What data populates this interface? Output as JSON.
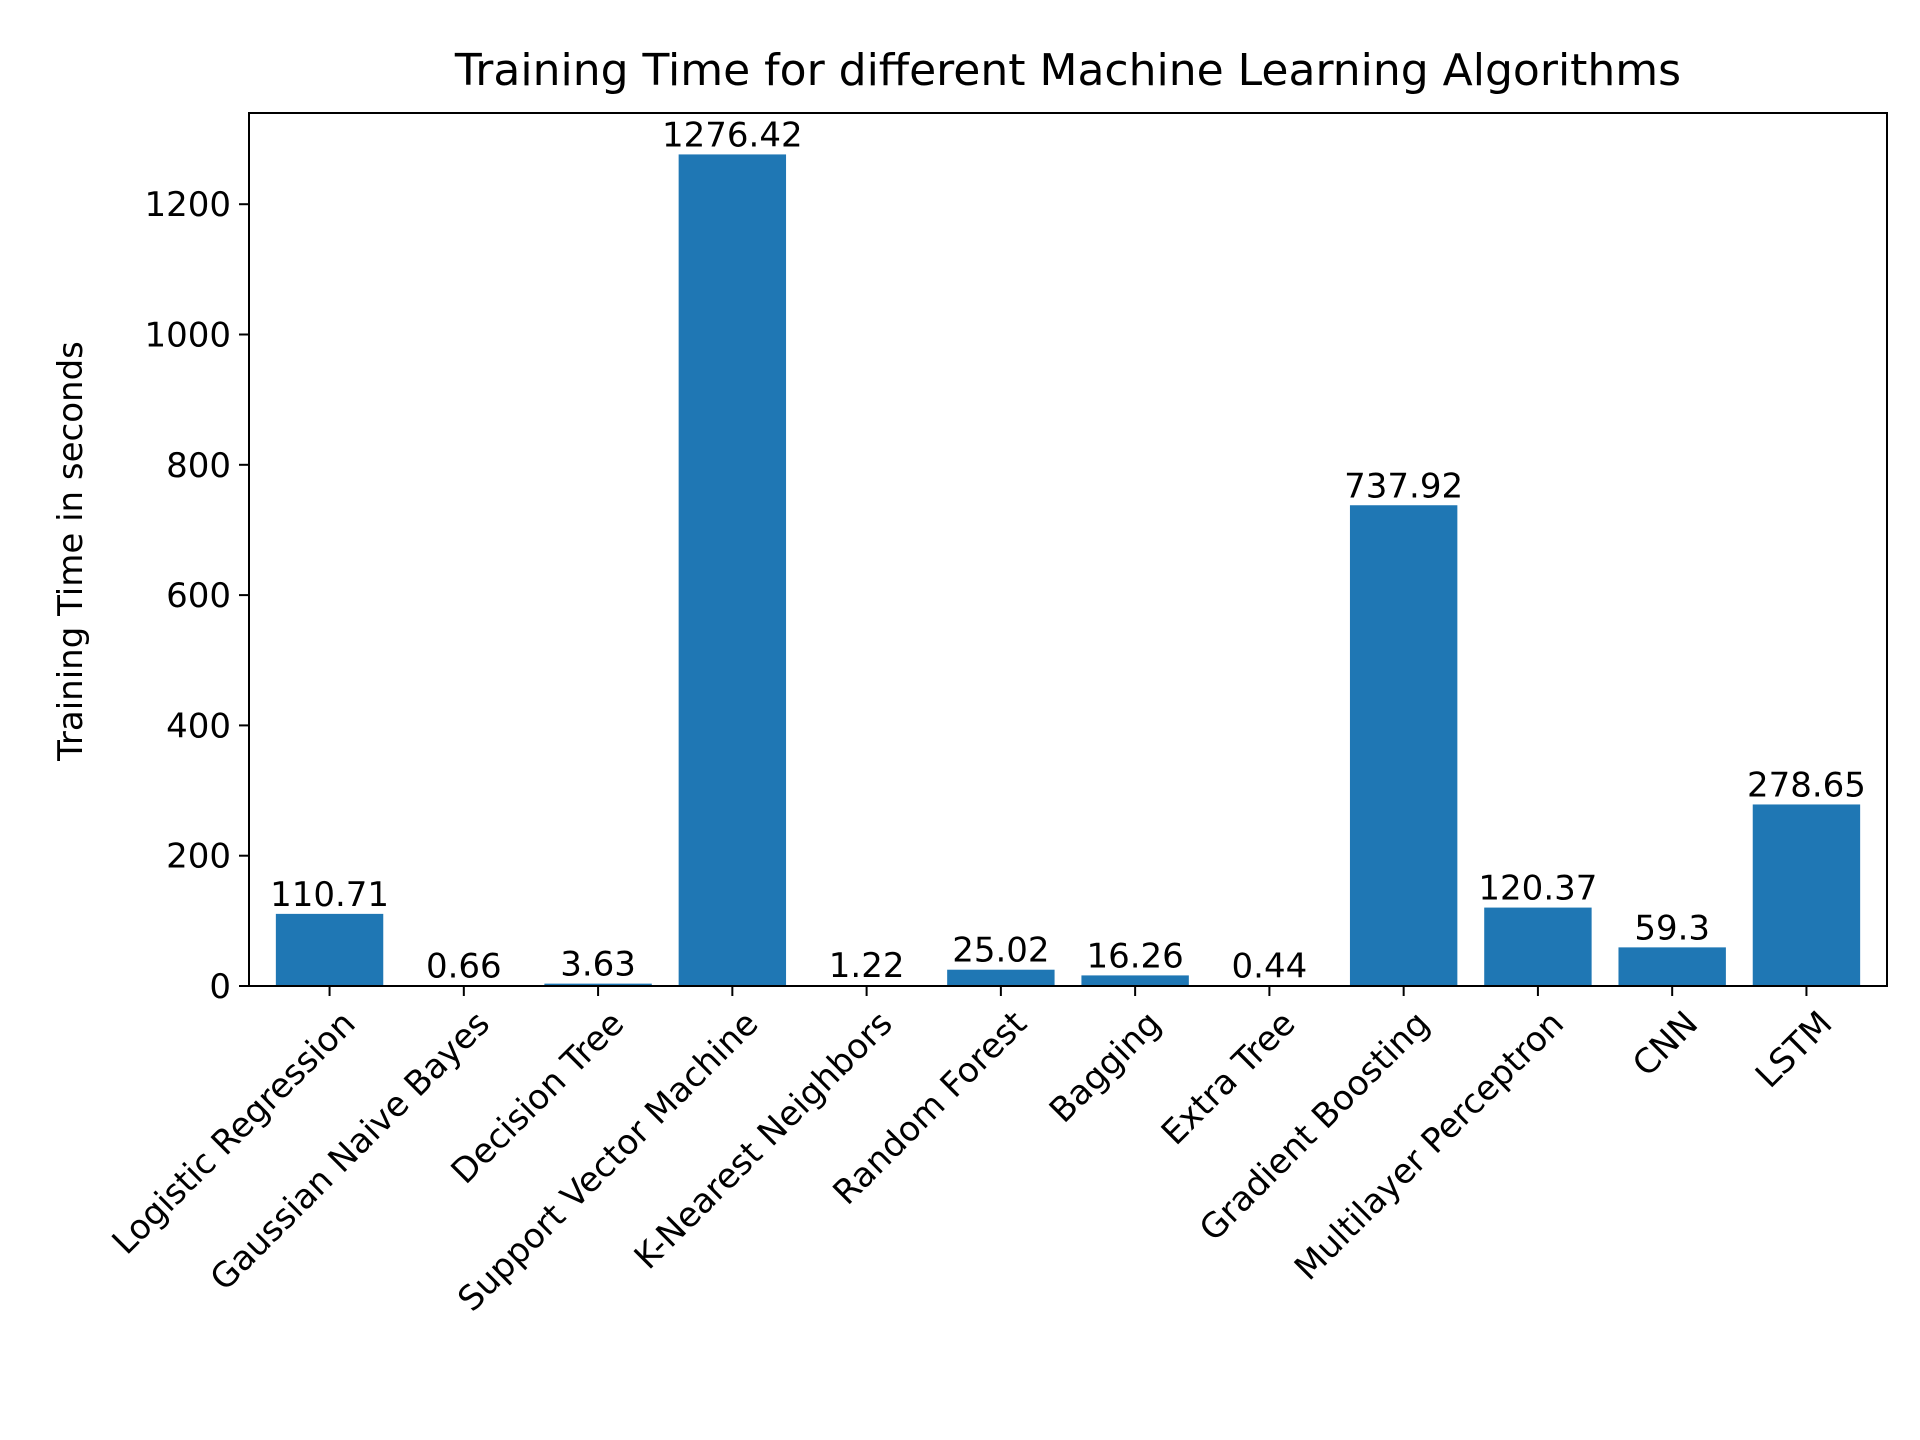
{
  "chart_data": {
    "type": "bar",
    "title": "Training Time for different Machine Learning Algorithms",
    "xlabel": "",
    "ylabel": "Training Time in seconds",
    "ylim": [
      0,
      1340
    ],
    "yticks": [
      0,
      200,
      400,
      600,
      800,
      1000,
      1200
    ],
    "grid": false,
    "legend": "none",
    "bar_color": "#1f77b4",
    "categories": [
      "Logistic Regression",
      "Gaussian Naive Bayes",
      "Decision Tree",
      "Support Vector Machine",
      "K-Nearest Neighbors",
      "Random Forest",
      "Bagging",
      "Extra Tree",
      "Gradient Boosting",
      "Multilayer Perceptron",
      "CNN",
      "LSTM"
    ],
    "values": [
      110.71,
      0.66,
      3.63,
      1276.42,
      1.22,
      25.02,
      16.26,
      0.44,
      737.92,
      120.37,
      59.3,
      278.65
    ],
    "data_labels": [
      "110.71",
      "0.66",
      "3.63",
      "1276.42",
      "1.22",
      "25.02",
      "16.26",
      "0.44",
      "737.92",
      "120.37",
      "59.3",
      "278.65"
    ]
  }
}
